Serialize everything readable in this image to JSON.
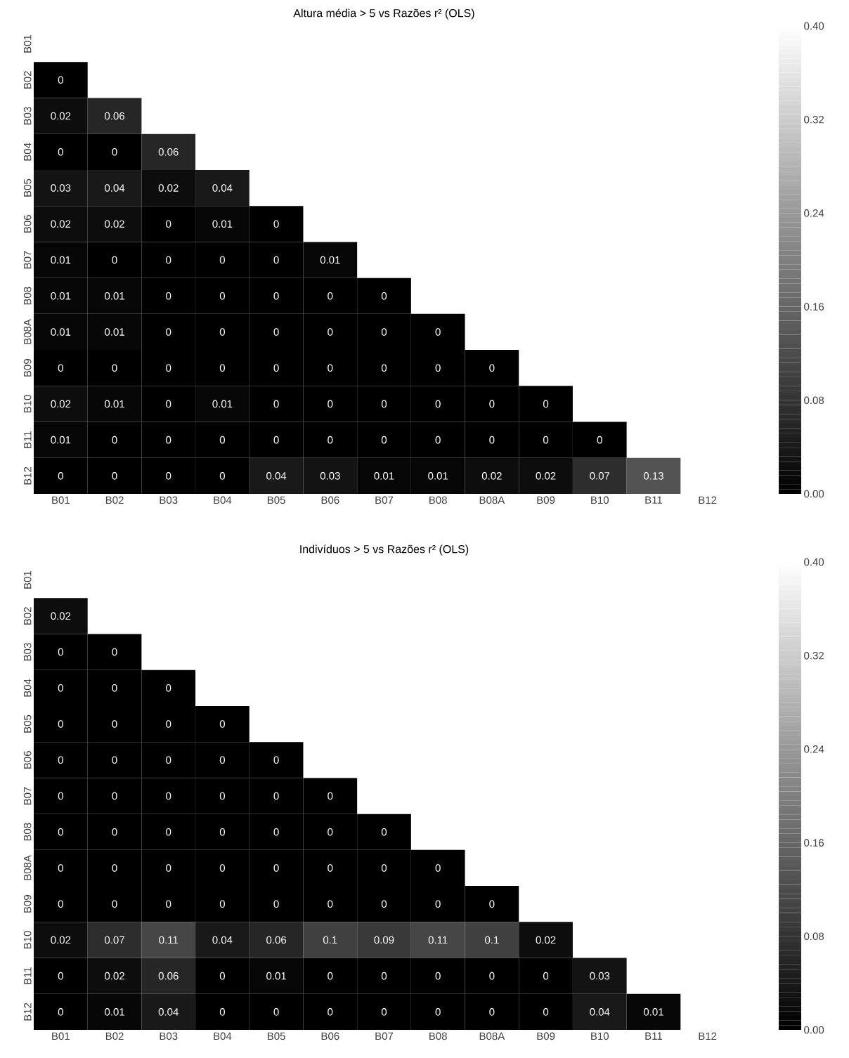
{
  "chart_data": [
    {
      "type": "heatmap",
      "title": "Altura média > 5 vs Razões r² (OLS)",
      "categories": [
        "B01",
        "B02",
        "B03",
        "B04",
        "B05",
        "B06",
        "B07",
        "B08",
        "B08A",
        "B09",
        "B10",
        "B11",
        "B12"
      ],
      "y_categories": [
        "B01",
        "B02",
        "B03",
        "B04",
        "B05",
        "B06",
        "B07",
        "B08",
        "B08A",
        "B09",
        "B10",
        "B11",
        "B12"
      ],
      "cells": [
        [
          null,
          null,
          null,
          null,
          null,
          null,
          null,
          null,
          null,
          null,
          null,
          null,
          null
        ],
        [
          0,
          null,
          null,
          null,
          null,
          null,
          null,
          null,
          null,
          null,
          null,
          null,
          null
        ],
        [
          0.02,
          0.06,
          null,
          null,
          null,
          null,
          null,
          null,
          null,
          null,
          null,
          null,
          null
        ],
        [
          0,
          0,
          0.06,
          null,
          null,
          null,
          null,
          null,
          null,
          null,
          null,
          null,
          null
        ],
        [
          0.03,
          0.04,
          0.02,
          0.04,
          null,
          null,
          null,
          null,
          null,
          null,
          null,
          null,
          null
        ],
        [
          0.02,
          0.02,
          0,
          0.01,
          0,
          null,
          null,
          null,
          null,
          null,
          null,
          null,
          null
        ],
        [
          0.01,
          0,
          0,
          0,
          0,
          0.01,
          null,
          null,
          null,
          null,
          null,
          null,
          null
        ],
        [
          0.01,
          0.01,
          0,
          0,
          0,
          0,
          0,
          null,
          null,
          null,
          null,
          null,
          null
        ],
        [
          0.01,
          0.01,
          0,
          0,
          0,
          0,
          0,
          0,
          null,
          null,
          null,
          null,
          null
        ],
        [
          0,
          0,
          0,
          0,
          0,
          0,
          0,
          0,
          0,
          null,
          null,
          null,
          null
        ],
        [
          0.02,
          0.01,
          0,
          0.01,
          0,
          0,
          0,
          0,
          0,
          0,
          null,
          null,
          null
        ],
        [
          0.01,
          0,
          0,
          0,
          0,
          0,
          0,
          0,
          0,
          0,
          0,
          null,
          null
        ],
        [
          0,
          0,
          0,
          0,
          0.04,
          0.03,
          0.01,
          0.01,
          0.02,
          0.02,
          0.07,
          0.13,
          null
        ]
      ],
      "clim": [
        0,
        0.4
      ],
      "cticks": [
        {
          "value": 0,
          "label": "0.00"
        },
        {
          "value": 0.08,
          "label": "0.08"
        },
        {
          "value": 0.16,
          "label": "0.16"
        },
        {
          "value": 0.24,
          "label": "0.24"
        },
        {
          "value": 0.32,
          "label": "0.32"
        },
        {
          "value": 0.4,
          "label": "0.40"
        }
      ],
      "data_labels": true
    },
    {
      "type": "heatmap",
      "title": "Indivíduos > 5 vs Razões r² (OLS)",
      "categories": [
        "B01",
        "B02",
        "B03",
        "B04",
        "B05",
        "B06",
        "B07",
        "B08",
        "B08A",
        "B09",
        "B10",
        "B11",
        "B12"
      ],
      "y_categories": [
        "B01",
        "B02",
        "B03",
        "B04",
        "B05",
        "B06",
        "B07",
        "B08",
        "B08A",
        "B09",
        "B10",
        "B11",
        "B12"
      ],
      "cells": [
        [
          null,
          null,
          null,
          null,
          null,
          null,
          null,
          null,
          null,
          null,
          null,
          null,
          null
        ],
        [
          0.02,
          null,
          null,
          null,
          null,
          null,
          null,
          null,
          null,
          null,
          null,
          null,
          null
        ],
        [
          0,
          0,
          null,
          null,
          null,
          null,
          null,
          null,
          null,
          null,
          null,
          null,
          null
        ],
        [
          0,
          0,
          0,
          null,
          null,
          null,
          null,
          null,
          null,
          null,
          null,
          null,
          null
        ],
        [
          0,
          0,
          0,
          0,
          null,
          null,
          null,
          null,
          null,
          null,
          null,
          null,
          null
        ],
        [
          0,
          0,
          0,
          0,
          0,
          null,
          null,
          null,
          null,
          null,
          null,
          null,
          null
        ],
        [
          0,
          0,
          0,
          0,
          0,
          0,
          null,
          null,
          null,
          null,
          null,
          null,
          null
        ],
        [
          0,
          0,
          0,
          0,
          0,
          0,
          0,
          null,
          null,
          null,
          null,
          null,
          null
        ],
        [
          0,
          0,
          0,
          0,
          0,
          0,
          0,
          0,
          null,
          null,
          null,
          null,
          null
        ],
        [
          0,
          0,
          0,
          0,
          0,
          0,
          0,
          0,
          0,
          null,
          null,
          null,
          null
        ],
        [
          0.02,
          0.07,
          0.11,
          0.04,
          0.06,
          0.1,
          0.09,
          0.11,
          0.1,
          0.02,
          null,
          null,
          null
        ],
        [
          0,
          0.02,
          0.06,
          0,
          0.01,
          0,
          0,
          0,
          0,
          0,
          0.03,
          null,
          null
        ],
        [
          0,
          0.01,
          0.04,
          0,
          0,
          0,
          0,
          0,
          0,
          0,
          0.04,
          0.01,
          null
        ]
      ],
      "clim": [
        0,
        0.4
      ],
      "cticks": [
        {
          "value": 0,
          "label": "0.00"
        },
        {
          "value": 0.08,
          "label": "0.08"
        },
        {
          "value": 0.16,
          "label": "0.16"
        },
        {
          "value": 0.24,
          "label": "0.24"
        },
        {
          "value": 0.32,
          "label": "0.32"
        },
        {
          "value": 0.4,
          "label": "0.40"
        }
      ],
      "data_labels": true
    }
  ]
}
